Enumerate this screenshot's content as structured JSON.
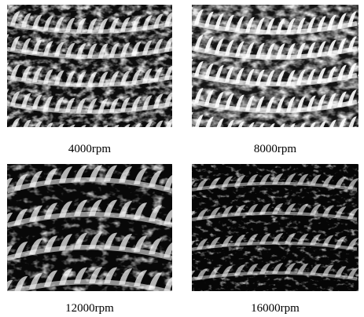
{
  "figure": {
    "panels": [
      {
        "caption": "4000rpm",
        "texture": "dense-spiral-teeth"
      },
      {
        "caption": "8000rpm",
        "texture": "bright-spiral-teeth"
      },
      {
        "caption": "12000rpm",
        "texture": "dark-coarse-teeth"
      },
      {
        "caption": "16000rpm",
        "texture": "dark-fine-teeth"
      }
    ]
  }
}
